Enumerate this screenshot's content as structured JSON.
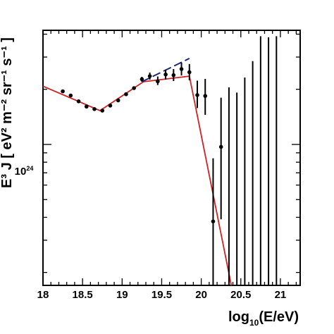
{
  "chart_data": {
    "type": "scatter",
    "xlabel": "log",
    "xlabel_sub": "10",
    "xlabel_tail": "(E/eV)",
    "ylabel": "E³ J [ eV² m⁻² sr⁻¹ s⁻¹ ]",
    "xlim": [
      18.0,
      21.25
    ],
    "x_ticks": [
      18,
      18.5,
      19,
      19.5,
      20,
      20.5,
      21
    ],
    "x_tick_labels": [
      "18",
      "18.5",
      "19",
      "19.5",
      "20",
      "20.5",
      "21"
    ],
    "y_scale": "log",
    "ylim": [
      1.7e+23,
      4.2e+24
    ],
    "y_tick_label": {
      "base": "10",
      "exp": "24",
      "value": 1e+24
    },
    "series": [
      {
        "kind": "points",
        "color": "#000000",
        "points": [
          {
            "x": 18.25,
            "y": 1.95e+24
          },
          {
            "x": 18.35,
            "y": 1.85e+24
          },
          {
            "x": 18.45,
            "y": 1.72e+24
          },
          {
            "x": 18.55,
            "y": 1.61e+24
          },
          {
            "x": 18.65,
            "y": 1.56e+24
          },
          {
            "x": 18.75,
            "y": 1.53e+24
          },
          {
            "x": 18.85,
            "y": 1.63e+24
          },
          {
            "x": 18.95,
            "y": 1.74e+24
          },
          {
            "x": 19.05,
            "y": 1.88e+24
          },
          {
            "x": 19.15,
            "y": 2.03e+24
          },
          {
            "x": 19.25,
            "y": 2.27e+24,
            "lo": 2.2e+24,
            "hi": 2.34e+24
          },
          {
            "x": 19.35,
            "y": 2.36e+24,
            "lo": 2.26e+24,
            "hi": 2.47e+24
          },
          {
            "x": 19.45,
            "y": 2.21e+24,
            "lo": 2.11e+24,
            "hi": 2.35e+24
          },
          {
            "x": 19.55,
            "y": 2.41e+24,
            "lo": 2.26e+24,
            "hi": 2.56e+24
          },
          {
            "x": 19.65,
            "y": 2.39e+24,
            "lo": 2.22e+24,
            "hi": 2.58e+24
          },
          {
            "x": 19.75,
            "y": 2.58e+24,
            "lo": 2.38e+24,
            "hi": 2.8e+24
          },
          {
            "x": 19.85,
            "y": 2.48e+24,
            "lo": 2.24e+24,
            "hi": 2.75e+24
          },
          {
            "x": 19.95,
            "y": 1.86e+24,
            "lo": 1.58e+24,
            "hi": 2.23e+24
          },
          {
            "x": 20.05,
            "y": 1.84e+24,
            "lo": 1.45e+24,
            "hi": 2.28e+24
          },
          {
            "x": 20.15,
            "y": 3.8e+23,
            "lo": 1.7e+23,
            "hi": 8.4e+23
          },
          {
            "x": 20.25,
            "y": 9.7e+23,
            "lo": 3.9e+23,
            "hi": 1.8e+24
          },
          {
            "x": 20.35,
            "lo": 1.7e+23,
            "hi": 2.05e+24
          },
          {
            "x": 20.45,
            "lo": 1.7e+23,
            "hi": 1.92e+24
          },
          {
            "x": 20.55,
            "lo": 1.7e+23,
            "hi": 2.32e+24
          },
          {
            "x": 20.65,
            "lo": 1.7e+23,
            "hi": 2.85e+24
          },
          {
            "x": 20.75,
            "lo": 1.7e+23,
            "hi": 3.9e+24
          },
          {
            "x": 20.85,
            "lo": 1.7e+23,
            "hi": 3.85e+24
          },
          {
            "x": 20.95,
            "lo": 1.7e+23,
            "hi": 3.9e+24
          }
        ]
      },
      {
        "kind": "line",
        "color": "#cc2222",
        "style": "solid",
        "points": [
          {
            "x": 18.0,
            "y": 2.08e+24
          },
          {
            "x": 18.72,
            "y": 1.53e+24
          },
          {
            "x": 19.27,
            "y": 2.2e+24
          },
          {
            "x": 19.85,
            "y": 2.36e+24
          },
          {
            "x": 20.38,
            "y": 1.7e+23
          }
        ]
      },
      {
        "kind": "line",
        "color": "#1a237e",
        "style": "dashed",
        "points": [
          {
            "x": 19.25,
            "y": 2.2e+24
          },
          {
            "x": 19.85,
            "y": 2.95e+24
          }
        ]
      }
    ]
  }
}
